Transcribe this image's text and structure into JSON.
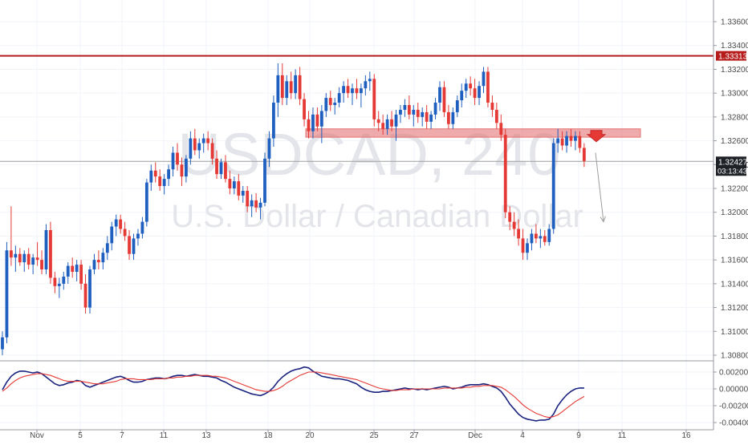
{
  "chart_data": [
    {
      "type": "candlestick",
      "watermark": {
        "symbol": "USDCAD, 240",
        "name": "U.S. Dollar / Canadian Dollar"
      },
      "ylim": [
        1.3078,
        1.338
      ],
      "y_ticks": [
        "1.33600",
        "1.33400",
        "1.33200",
        "1.33000",
        "1.32800",
        "1.32600",
        "1.32400",
        "1.32200",
        "1.32000",
        "1.31800",
        "1.31600",
        "1.31400",
        "1.31200",
        "1.31000",
        "1.30800"
      ],
      "x_ticks": [
        "Nov",
        "5",
        "7",
        "11",
        "13",
        "18",
        "20",
        "25",
        "27",
        "Dec",
        "4",
        "9",
        "11",
        "16"
      ],
      "resistance_line": {
        "value": 1.33313,
        "label": "1.33313",
        "color": "#b71c1c"
      },
      "last_price": {
        "value": 1.32427,
        "label": "1.32427",
        "countdown": "03:13:43"
      },
      "zone": {
        "top": 1.327,
        "bottom": 1.3263,
        "color": "#e57373"
      },
      "projection": {
        "from": 1.325,
        "to": 1.3192
      },
      "candle_colors": {
        "up": "#1e5fbf",
        "down": "#e53935"
      },
      "candles": [
        [
          1.3085,
          1.31,
          1.308,
          1.3095
        ],
        [
          1.3095,
          1.3175,
          1.309,
          1.3168
        ],
        [
          1.3168,
          1.3205,
          1.3155,
          1.3162
        ],
        [
          1.3162,
          1.3172,
          1.315,
          1.3165
        ],
        [
          1.3165,
          1.317,
          1.3155,
          1.3158
        ],
        [
          1.3158,
          1.3168,
          1.315,
          1.3165
        ],
        [
          1.3165,
          1.317,
          1.3152,
          1.3156
        ],
        [
          1.3156,
          1.3165,
          1.3148,
          1.3162
        ],
        [
          1.3162,
          1.3175,
          1.3155,
          1.316
        ],
        [
          1.316,
          1.3168,
          1.3148,
          1.3152
        ],
        [
          1.3152,
          1.319,
          1.3148,
          1.3185
        ],
        [
          1.3185,
          1.3192,
          1.314,
          1.3145
        ],
        [
          1.3145,
          1.315,
          1.3132,
          1.3138
        ],
        [
          1.3138,
          1.3145,
          1.3128,
          1.314
        ],
        [
          1.314,
          1.315,
          1.3135,
          1.3146
        ],
        [
          1.3146,
          1.3158,
          1.314,
          1.3155
        ],
        [
          1.3155,
          1.3162,
          1.3145,
          1.315
        ],
        [
          1.315,
          1.316,
          1.3142,
          1.3156
        ],
        [
          1.3156,
          1.316,
          1.3135,
          1.314
        ],
        [
          1.314,
          1.3148,
          1.3115,
          1.312
        ],
        [
          1.312,
          1.3155,
          1.3115,
          1.3152
        ],
        [
          1.3152,
          1.3165,
          1.3148,
          1.316
        ],
        [
          1.316,
          1.3168,
          1.3152,
          1.3158
        ],
        [
          1.3158,
          1.317,
          1.3152,
          1.3166
        ],
        [
          1.3166,
          1.318,
          1.316,
          1.3174
        ],
        [
          1.3174,
          1.3192,
          1.3168,
          1.3188
        ],
        [
          1.3188,
          1.3198,
          1.318,
          1.3194
        ],
        [
          1.3194,
          1.3198,
          1.3182,
          1.3186
        ],
        [
          1.3186,
          1.3192,
          1.3176,
          1.318
        ],
        [
          1.318,
          1.3185,
          1.316,
          1.3165
        ],
        [
          1.3165,
          1.3182,
          1.316,
          1.3178
        ],
        [
          1.3178,
          1.3186,
          1.3172,
          1.3182
        ],
        [
          1.3182,
          1.3196,
          1.3178,
          1.3192
        ],
        [
          1.3192,
          1.3228,
          1.3188,
          1.3225
        ],
        [
          1.3225,
          1.324,
          1.3218,
          1.3235
        ],
        [
          1.3235,
          1.3242,
          1.3225,
          1.323
        ],
        [
          1.323,
          1.3236,
          1.3218,
          1.3222
        ],
        [
          1.3222,
          1.3232,
          1.3215,
          1.3228
        ],
        [
          1.3228,
          1.324,
          1.3222,
          1.3236
        ],
        [
          1.3236,
          1.3255,
          1.323,
          1.325
        ],
        [
          1.325,
          1.3258,
          1.3235,
          1.324
        ],
        [
          1.324,
          1.3246,
          1.3222,
          1.323
        ],
        [
          1.323,
          1.3248,
          1.3225,
          1.3245
        ],
        [
          1.3245,
          1.3268,
          1.324,
          1.3262
        ],
        [
          1.3262,
          1.327,
          1.3248,
          1.3252
        ],
        [
          1.3252,
          1.3262,
          1.3245,
          1.3258
        ],
        [
          1.3258,
          1.3266,
          1.325,
          1.3262
        ],
        [
          1.3262,
          1.3268,
          1.3252,
          1.3258
        ],
        [
          1.3258,
          1.3262,
          1.324,
          1.3245
        ],
        [
          1.3245,
          1.3252,
          1.3228,
          1.3232
        ],
        [
          1.3232,
          1.3245,
          1.3228,
          1.3242
        ],
        [
          1.3242,
          1.3248,
          1.3225,
          1.3228
        ],
        [
          1.3228,
          1.3235,
          1.3215,
          1.322
        ],
        [
          1.322,
          1.323,
          1.3215,
          1.3226
        ],
        [
          1.3226,
          1.3232,
          1.321,
          1.3214
        ],
        [
          1.3214,
          1.3222,
          1.3208,
          1.3218
        ],
        [
          1.3218,
          1.3222,
          1.32,
          1.3205
        ],
        [
          1.3205,
          1.3215,
          1.3196,
          1.321
        ],
        [
          1.321,
          1.3216,
          1.32,
          1.3204
        ],
        [
          1.3204,
          1.3212,
          1.3194,
          1.3208
        ],
        [
          1.3208,
          1.325,
          1.3205,
          1.3245
        ],
        [
          1.3245,
          1.3268,
          1.3238,
          1.3262
        ],
        [
          1.3262,
          1.3298,
          1.3255,
          1.3292
        ],
        [
          1.3292,
          1.3325,
          1.328,
          1.3315
        ],
        [
          1.3315,
          1.3325,
          1.329,
          1.3296
        ],
        [
          1.3296,
          1.3315,
          1.329,
          1.331
        ],
        [
          1.331,
          1.3318,
          1.3295,
          1.33
        ],
        [
          1.33,
          1.332,
          1.3295,
          1.3315
        ],
        [
          1.3315,
          1.3322,
          1.329,
          1.3295
        ],
        [
          1.3295,
          1.33,
          1.3272,
          1.3278
        ],
        [
          1.3278,
          1.3285,
          1.3262,
          1.3268
        ],
        [
          1.3268,
          1.3288,
          1.3262,
          1.3282
        ],
        [
          1.3282,
          1.3288,
          1.3268,
          1.3272
        ],
        [
          1.3272,
          1.329,
          1.3258,
          1.3285
        ],
        [
          1.3285,
          1.33,
          1.328,
          1.3296
        ],
        [
          1.3296,
          1.3302,
          1.3285,
          1.329
        ],
        [
          1.329,
          1.3296,
          1.3282,
          1.3292
        ],
        [
          1.3292,
          1.3305,
          1.3288,
          1.33
        ],
        [
          1.33,
          1.331,
          1.3292,
          1.3306
        ],
        [
          1.3306,
          1.3312,
          1.3296,
          1.33
        ],
        [
          1.33,
          1.3308,
          1.329,
          1.3304
        ],
        [
          1.3304,
          1.3312,
          1.3295,
          1.33
        ],
        [
          1.33,
          1.3308,
          1.3288,
          1.3304
        ],
        [
          1.3304,
          1.3315,
          1.3298,
          1.331
        ],
        [
          1.331,
          1.3318,
          1.3302,
          1.3312
        ],
        [
          1.3312,
          1.3316,
          1.3272,
          1.3278
        ],
        [
          1.3278,
          1.3285,
          1.3268,
          1.3275
        ],
        [
          1.3275,
          1.3282,
          1.3265,
          1.327
        ],
        [
          1.327,
          1.3282,
          1.3265,
          1.3278
        ],
        [
          1.3278,
          1.3285,
          1.3268,
          1.3272
        ],
        [
          1.3272,
          1.3286,
          1.326,
          1.3282
        ],
        [
          1.3282,
          1.329,
          1.3275,
          1.3286
        ],
        [
          1.3286,
          1.3295,
          1.328,
          1.329
        ],
        [
          1.329,
          1.3298,
          1.3278,
          1.3282
        ],
        [
          1.3282,
          1.329,
          1.3272,
          1.3286
        ],
        [
          1.3286,
          1.3292,
          1.3275,
          1.328
        ],
        [
          1.328,
          1.3288,
          1.3272,
          1.3284
        ],
        [
          1.3284,
          1.329,
          1.327,
          1.3276
        ],
        [
          1.3276,
          1.3285,
          1.327,
          1.3282
        ],
        [
          1.3282,
          1.3296,
          1.3278,
          1.3292
        ],
        [
          1.3292,
          1.331,
          1.3285,
          1.3305
        ],
        [
          1.3305,
          1.331,
          1.328,
          1.3284
        ],
        [
          1.3284,
          1.329,
          1.327,
          1.3274
        ],
        [
          1.3274,
          1.3288,
          1.327,
          1.3284
        ],
        [
          1.3284,
          1.3298,
          1.328,
          1.3294
        ],
        [
          1.3294,
          1.3308,
          1.3288,
          1.3302
        ],
        [
          1.3302,
          1.3312,
          1.3296,
          1.3308
        ],
        [
          1.3308,
          1.3314,
          1.3298,
          1.3304
        ],
        [
          1.3304,
          1.3312,
          1.329,
          1.3296
        ],
        [
          1.3296,
          1.331,
          1.329,
          1.3306
        ],
        [
          1.3306,
          1.3322,
          1.33,
          1.3318
        ],
        [
          1.3318,
          1.3322,
          1.3288,
          1.3292
        ],
        [
          1.3292,
          1.3298,
          1.328,
          1.3286
        ],
        [
          1.3286,
          1.3292,
          1.327,
          1.3275
        ],
        [
          1.3275,
          1.3282,
          1.326,
          1.3265
        ],
        [
          1.3265,
          1.327,
          1.3195,
          1.32
        ],
        [
          1.32,
          1.3205,
          1.3185,
          1.3192
        ],
        [
          1.3192,
          1.32,
          1.318,
          1.3186
        ],
        [
          1.3186,
          1.3194,
          1.3172,
          1.3178
        ],
        [
          1.3178,
          1.3186,
          1.316,
          1.3166
        ],
        [
          1.3166,
          1.3178,
          1.316,
          1.3174
        ],
        [
          1.3174,
          1.3186,
          1.3168,
          1.3182
        ],
        [
          1.3182,
          1.319,
          1.3174,
          1.3178
        ],
        [
          1.3178,
          1.3186,
          1.317,
          1.318
        ],
        [
          1.318,
          1.3185,
          1.3172,
          1.3175
        ],
        [
          1.3175,
          1.319,
          1.3172,
          1.3186
        ],
        [
          1.3186,
          1.3262,
          1.3182,
          1.3258
        ],
        [
          1.3258,
          1.327,
          1.325,
          1.3262
        ],
        [
          1.3262,
          1.3268,
          1.3252,
          1.3256
        ],
        [
          1.3256,
          1.3268,
          1.325,
          1.3264
        ],
        [
          1.3264,
          1.327,
          1.3255,
          1.326
        ],
        [
          1.326,
          1.3268,
          1.3252,
          1.3264
        ],
        [
          1.3264,
          1.3268,
          1.325,
          1.3254
        ],
        [
          1.3254,
          1.3258,
          1.3238,
          1.3243
        ]
      ]
    },
    {
      "type": "line",
      "ylim": [
        -0.0046,
        0.003
      ],
      "y_ticks": [
        "0.00200",
        "0.00000",
        "-0.00200",
        "-0.00400"
      ],
      "series": [
        {
          "color": "#1a237e",
          "values": [
            -0.0001,
            0.0008,
            0.0015,
            0.0019,
            0.0021,
            0.0021,
            0.002,
            0.0019,
            0.002,
            0.0018,
            0.0014,
            0.001,
            0.0006,
            0.0004,
            0.0005,
            0.0007,
            0.0008,
            0.001,
            0.0009,
            0.0004,
            0.0002,
            0.0004,
            0.0006,
            0.0008,
            0.001,
            0.0012,
            0.0014,
            0.0015,
            0.0013,
            0.001,
            0.0008,
            0.0008,
            0.0009,
            0.0011,
            0.0012,
            0.0013,
            0.0013,
            0.0012,
            0.0013,
            0.0015,
            0.0016,
            0.0016,
            0.0015,
            0.0016,
            0.0017,
            0.0016,
            0.0015,
            0.0015,
            0.0014,
            0.0013,
            0.001,
            0.0008,
            0.0005,
            0.0002,
            0.0,
            -0.0002,
            -0.0004,
            -0.0006,
            -0.0007,
            -0.0008,
            -0.0006,
            -0.0003,
            0.0002,
            0.0009,
            0.0014,
            0.0018,
            0.0021,
            0.0023,
            0.0024,
            0.0026,
            0.0025,
            0.0021,
            0.0018,
            0.0015,
            0.0014,
            0.0013,
            0.0012,
            0.0012,
            0.0011,
            0.001,
            0.0008,
            0.0006,
            0.0002,
            -0.0001,
            -0.0003,
            -0.0004,
            -0.0004,
            -0.0003,
            -0.0003,
            -0.0002,
            -0.0001,
            0.0,
            0.0001,
            0.0,
            0.0,
            -0.0001,
            0.0,
            -0.0001,
            0.0,
            0.0001,
            0.0002,
            0.0003,
            0.0002,
            0.0,
            0.0001,
            0.0002,
            0.0004,
            0.0005,
            0.0005,
            0.0005,
            0.0006,
            0.0005,
            0.0003,
            0.0001,
            -0.0003,
            -0.001,
            -0.0018,
            -0.0024,
            -0.003,
            -0.0034,
            -0.0036,
            -0.0037,
            -0.0038,
            -0.0037,
            -0.0037,
            -0.0036,
            -0.003,
            -0.002,
            -0.0013,
            -0.0007,
            -0.0003,
            0.0,
            0.0001,
            0.0001
          ]
        },
        {
          "color": "#e53935",
          "values": [
            -0.0003,
            0.0001,
            0.0006,
            0.001,
            0.0013,
            0.0015,
            0.0016,
            0.0017,
            0.0018,
            0.0018,
            0.0017,
            0.0016,
            0.0014,
            0.0012,
            0.001,
            0.0009,
            0.0009,
            0.0009,
            0.0009,
            0.0008,
            0.0007,
            0.0006,
            0.0006,
            0.0006,
            0.0007,
            0.0008,
            0.0009,
            0.0011,
            0.0012,
            0.0012,
            0.0012,
            0.0011,
            0.0011,
            0.0011,
            0.0011,
            0.0012,
            0.0012,
            0.0012,
            0.0013,
            0.0013,
            0.0014,
            0.0014,
            0.0015,
            0.0015,
            0.0016,
            0.0016,
            0.0016,
            0.0016,
            0.0015,
            0.0015,
            0.0014,
            0.0013,
            0.0011,
            0.0009,
            0.0007,
            0.0005,
            0.0003,
            0.0001,
            -0.0001,
            -0.0002,
            -0.0003,
            -0.0003,
            -0.0002,
            0.0,
            0.0003,
            0.0007,
            0.001,
            0.0013,
            0.0016,
            0.0018,
            0.002,
            0.002,
            0.002,
            0.0019,
            0.0018,
            0.0017,
            0.0016,
            0.0015,
            0.0014,
            0.0013,
            0.0012,
            0.0011,
            0.0009,
            0.0007,
            0.0005,
            0.0003,
            0.0001,
            0.0,
            -0.0001,
            -0.0002,
            -0.0002,
            -0.0001,
            -0.0001,
            -0.0001,
            0.0,
            0.0,
            0.0,
            0.0,
            0.0,
            0.0,
            0.0,
            0.0001,
            0.0001,
            0.0001,
            0.0001,
            0.0001,
            0.0002,
            0.0002,
            0.0003,
            0.0003,
            0.0004,
            0.0004,
            0.0004,
            0.0003,
            0.0002,
            -0.0001,
            -0.0005,
            -0.0009,
            -0.0014,
            -0.0019,
            -0.0023,
            -0.0026,
            -0.0029,
            -0.0031,
            -0.0033,
            -0.0034,
            -0.0033,
            -0.0031,
            -0.0027,
            -0.0023,
            -0.0019,
            -0.0015,
            -0.0012,
            -0.0009
          ]
        }
      ]
    }
  ]
}
